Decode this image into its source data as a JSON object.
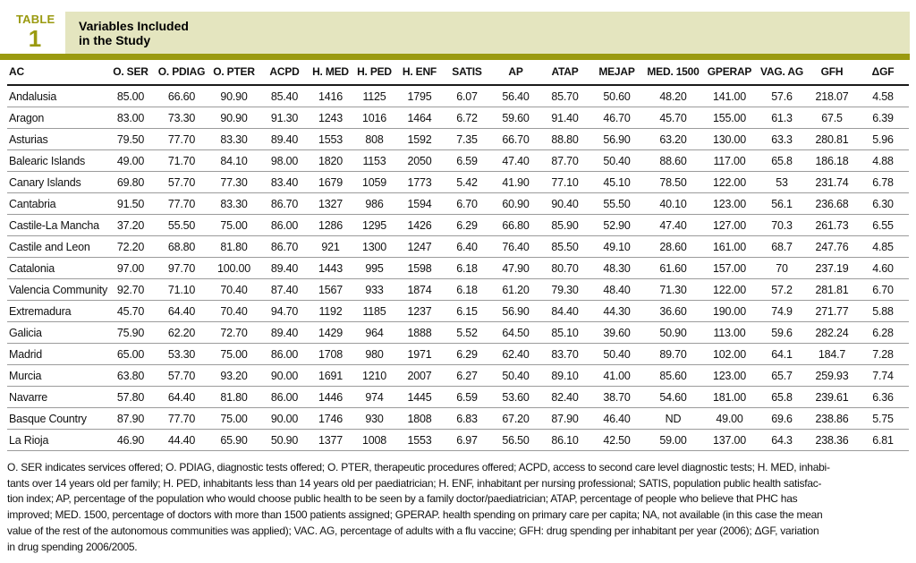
{
  "header": {
    "kicker": "TABLE",
    "table_number": "1",
    "title_line1": "Variables Included",
    "title_line2": "in the Study"
  },
  "colors": {
    "accent_olive": "#9a9a10",
    "band_khaki": "#e4e5bf",
    "header_rule": "#1a1a1a",
    "row_rule": "#9b9b9b"
  },
  "chart_data": {
    "type": "table",
    "title": "Variables Included in the Study",
    "columns": [
      "AC",
      "O. SER",
      "O. PDIAG",
      "O. PTER",
      "ACPD",
      "H. MED",
      "H. PED",
      "H. ENF",
      "SATIS",
      "AP",
      "ATAP",
      "MEJAP",
      "MED. 1500",
      "GPERAP",
      "VAG. AG",
      "GFH",
      "ΔGF"
    ],
    "rows": [
      [
        "Andalusia",
        "85.00",
        "66.60",
        "90.90",
        "85.40",
        "1416",
        "1125",
        "1795",
        "6.07",
        "56.40",
        "85.70",
        "50.60",
        "48.20",
        "141.00",
        "57.6",
        "218.07",
        "4.58"
      ],
      [
        "Aragon",
        "83.00",
        "73.30",
        "90.90",
        "91.30",
        "1243",
        "1016",
        "1464",
        "6.72",
        "59.60",
        "91.40",
        "46.70",
        "45.70",
        "155.00",
        "61.3",
        "67.5",
        "6.39"
      ],
      [
        "Asturias",
        "79.50",
        "77.70",
        "83.30",
        "89.40",
        "1553",
        "808",
        "1592",
        "7.35",
        "66.70",
        "88.80",
        "56.90",
        "63.20",
        "130.00",
        "63.3",
        "280.81",
        "5.96"
      ],
      [
        "Balearic Islands",
        "49.00",
        "71.70",
        "84.10",
        "98.00",
        "1820",
        "1153",
        "2050",
        "6.59",
        "47.40",
        "87.70",
        "50.40",
        "88.60",
        "117.00",
        "65.8",
        "186.18",
        "4.88"
      ],
      [
        "Canary Islands",
        "69.80",
        "57.70",
        "77.30",
        "83.40",
        "1679",
        "1059",
        "1773",
        "5.42",
        "41.90",
        "77.10",
        "45.10",
        "78.50",
        "122.00",
        "53",
        "231.74",
        "6.78"
      ],
      [
        "Cantabria",
        "91.50",
        "77.70",
        "83.30",
        "86.70",
        "1327",
        "986",
        "1594",
        "6.70",
        "60.90",
        "90.40",
        "55.50",
        "40.10",
        "123.00",
        "56.1",
        "236.68",
        "6.30"
      ],
      [
        "Castile-La Mancha",
        "37.20",
        "55.50",
        "75.00",
        "86.00",
        "1286",
        "1295",
        "1426",
        "6.29",
        "66.80",
        "85.90",
        "52.90",
        "47.40",
        "127.00",
        "70.3",
        "261.73",
        "6.55"
      ],
      [
        "Castile and Leon",
        "72.20",
        "68.80",
        "81.80",
        "86.70",
        "921",
        "1300",
        "1247",
        "6.40",
        "76.40",
        "85.50",
        "49.10",
        "28.60",
        "161.00",
        "68.7",
        "247.76",
        "4.85"
      ],
      [
        "Catalonia",
        "97.00",
        "97.70",
        "100.00",
        "89.40",
        "1443",
        "995",
        "1598",
        "6.18",
        "47.90",
        "80.70",
        "48.30",
        "61.60",
        "157.00",
        "70",
        "237.19",
        "4.60"
      ],
      [
        "Valencia Community",
        "92.70",
        "71.10",
        "70.40",
        "87.40",
        "1567",
        "933",
        "1874",
        "6.18",
        "61.20",
        "79.30",
        "48.40",
        "71.30",
        "122.00",
        "57.2",
        "281.81",
        "6.70"
      ],
      [
        "Extremadura",
        "45.70",
        "64.40",
        "70.40",
        "94.70",
        "1192",
        "1185",
        "1237",
        "6.15",
        "56.90",
        "84.40",
        "44.30",
        "36.60",
        "190.00",
        "74.9",
        "271.77",
        "5.88"
      ],
      [
        "Galicia",
        "75.90",
        "62.20",
        "72.70",
        "89.40",
        "1429",
        "964",
        "1888",
        "5.52",
        "64.50",
        "85.10",
        "39.60",
        "50.90",
        "113.00",
        "59.6",
        "282.24",
        "6.28"
      ],
      [
        "Madrid",
        "65.00",
        "53.30",
        "75.00",
        "86.00",
        "1708",
        "980",
        "1971",
        "6.29",
        "62.40",
        "83.70",
        "50.40",
        "89.70",
        "102.00",
        "64.1",
        "184.7",
        "7.28"
      ],
      [
        "Murcia",
        "63.80",
        "57.70",
        "93.20",
        "90.00",
        "1691",
        "1210",
        "2007",
        "6.27",
        "50.40",
        "89.10",
        "41.00",
        "85.60",
        "123.00",
        "65.7",
        "259.93",
        "7.74"
      ],
      [
        "Navarre",
        "57.80",
        "64.40",
        "81.80",
        "86.00",
        "1446",
        "974",
        "1445",
        "6.59",
        "53.60",
        "82.40",
        "38.70",
        "54.60",
        "181.00",
        "65.8",
        "239.61",
        "6.36"
      ],
      [
        "Basque Country",
        "87.90",
        "77.70",
        "75.00",
        "90.00",
        "1746",
        "930",
        "1808",
        "6.83",
        "67.20",
        "87.90",
        "46.40",
        "ND",
        "49.00",
        "69.6",
        "238.86",
        "5.75"
      ],
      [
        "La Rioja",
        "46.90",
        "44.40",
        "65.90",
        "50.90",
        "1377",
        "1008",
        "1553",
        "6.97",
        "56.50",
        "86.10",
        "42.50",
        "59.00",
        "137.00",
        "64.3",
        "238.36",
        "6.81"
      ]
    ],
    "footnote_lines": [
      "O. SER indicates services offered; O. PDIAG, diagnostic tests offered; O. PTER, therapeutic procedures offered; ACPD, access to second care level diagnostic tests; H. MED, inhabi-",
      "tants over 14 years old per family; H. PED, inhabitants less than 14 years old per paediatrician; H. ENF, inhabitant per nursing professional; SATIS, population public health satisfac-",
      "tion index; AP, percentage of the population who would choose public health to be seen by a family doctor/paediatrician; ATAP, percentage of people who believe that PHC has",
      "improved; MED. 1500, percentage of doctors with more than 1500 patients assigned; GPERAP. health spending on primary care per capita; NA, not available (in this case the mean",
      "value of the rest of the autonomous communities was applied); VAC. AG, percentage of adults with a flu vaccine; GFH: drug spending per inhabitant per year (2006); ΔGF, variation",
      "in drug spending 2006/2005."
    ]
  }
}
